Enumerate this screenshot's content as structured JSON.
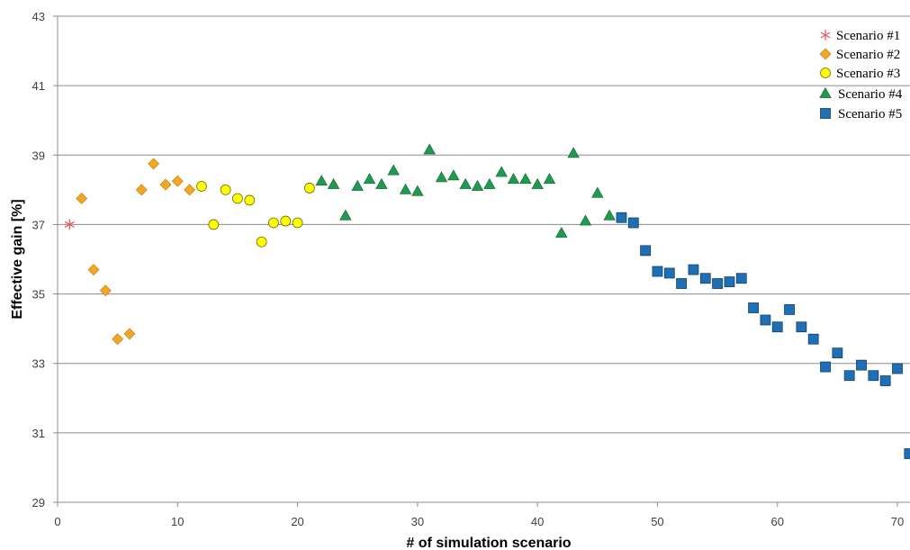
{
  "chart_data": {
    "type": "scatter",
    "title": "",
    "xlabel": "# of simulation scenario",
    "ylabel": "Effective gain [%]",
    "xlim": [
      0,
      70
    ],
    "ylim": [
      29,
      43
    ],
    "xticks": [
      0,
      10,
      20,
      30,
      40,
      50,
      60,
      70
    ],
    "yticks": [
      29,
      31,
      33,
      35,
      37,
      39,
      41,
      43
    ],
    "grid": "horizontal",
    "legend_position": "top-right",
    "series": [
      {
        "name": "Scenario #1",
        "marker": "asterisk",
        "color": "#e8545a",
        "points": [
          [
            1,
            37.0
          ]
        ]
      },
      {
        "name": "Scenario #2",
        "marker": "diamond",
        "color": "#f5a623",
        "points": [
          [
            2,
            37.75
          ],
          [
            3,
            35.7
          ],
          [
            4,
            35.1
          ],
          [
            5,
            33.7
          ],
          [
            6,
            33.85
          ],
          [
            7,
            38.0
          ],
          [
            8,
            38.75
          ],
          [
            9,
            38.15
          ],
          [
            10,
            38.25
          ],
          [
            11,
            38.0
          ]
        ]
      },
      {
        "name": "Scenario #3",
        "marker": "circle",
        "color": "#ffff00",
        "points": [
          [
            12,
            38.1
          ],
          [
            13,
            37.0
          ],
          [
            14,
            38.0
          ],
          [
            15,
            37.75
          ],
          [
            16,
            37.7
          ],
          [
            17,
            36.5
          ],
          [
            18,
            37.05
          ],
          [
            19,
            37.1
          ],
          [
            20,
            37.05
          ],
          [
            21,
            38.05
          ]
        ]
      },
      {
        "name": "Scenario #4",
        "marker": "triangle",
        "color": "#1e9b4e",
        "points": [
          [
            22,
            38.25
          ],
          [
            23,
            38.15
          ],
          [
            24,
            37.25
          ],
          [
            25,
            38.1
          ],
          [
            26,
            38.3
          ],
          [
            27,
            38.15
          ],
          [
            28,
            38.55
          ],
          [
            29,
            38.0
          ],
          [
            30,
            37.95
          ],
          [
            31,
            39.15
          ],
          [
            32,
            38.35
          ],
          [
            33,
            38.4
          ],
          [
            34,
            38.15
          ],
          [
            35,
            38.1
          ],
          [
            36,
            38.15
          ],
          [
            37,
            38.5
          ],
          [
            38,
            38.3
          ],
          [
            39,
            38.3
          ],
          [
            40,
            38.15
          ],
          [
            41,
            38.3
          ],
          [
            42,
            36.75
          ],
          [
            43,
            39.05
          ],
          [
            44,
            37.1
          ],
          [
            45,
            37.9
          ],
          [
            46,
            37.25
          ]
        ]
      },
      {
        "name": "Scenario #5",
        "marker": "square",
        "color": "#1f6fb5",
        "points": [
          [
            47,
            37.2
          ],
          [
            48,
            37.05
          ],
          [
            49,
            36.25
          ],
          [
            50,
            35.65
          ],
          [
            51,
            35.6
          ],
          [
            52,
            35.3
          ],
          [
            53,
            35.7
          ],
          [
            54,
            35.45
          ],
          [
            55,
            35.3
          ],
          [
            56,
            35.35
          ],
          [
            57,
            35.45
          ],
          [
            58,
            34.6
          ],
          [
            59,
            34.25
          ],
          [
            60,
            34.05
          ],
          [
            61,
            34.55
          ],
          [
            62,
            34.05
          ],
          [
            63,
            33.7
          ],
          [
            64,
            32.9
          ],
          [
            65,
            33.3
          ],
          [
            66,
            32.65
          ],
          [
            67,
            32.95
          ],
          [
            68,
            32.65
          ],
          [
            69,
            32.5
          ],
          [
            70,
            32.85
          ],
          [
            71,
            30.4
          ]
        ]
      }
    ]
  }
}
